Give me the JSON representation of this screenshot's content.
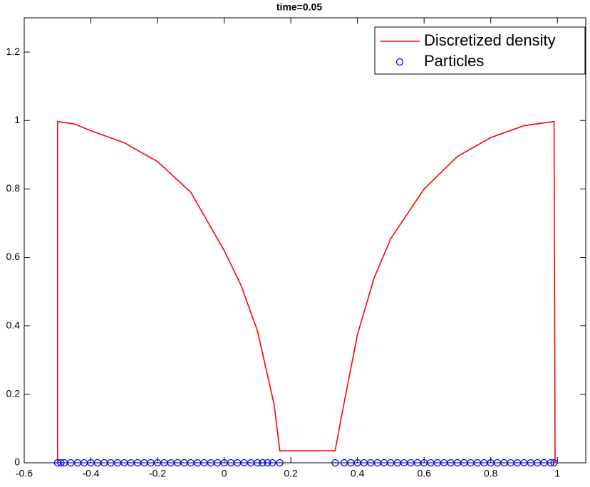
{
  "chart_data": {
    "type": "line",
    "title": "time=0.05",
    "xlim": [
      -0.6,
      1.085
    ],
    "ylim": [
      0,
      1.3
    ],
    "xticks": [
      -0.6,
      -0.4,
      -0.2,
      0,
      0.2,
      0.4,
      0.6,
      0.8,
      1
    ],
    "yticks": [
      0,
      0.2,
      0.4,
      0.6,
      0.8,
      1,
      1.2
    ],
    "legend": "upper right",
    "series": [
      {
        "name": "Discretized density",
        "color": "#ff0000",
        "x": [
          -0.5,
          -0.5,
          -0.45,
          -0.4,
          -0.3,
          -0.2,
          -0.1,
          0,
          0.05,
          0.1,
          0.15,
          0.167,
          0.333,
          0.35,
          0.4,
          0.45,
          0.5,
          0.6,
          0.7,
          0.8,
          0.9,
          0.99,
          0.993
        ],
        "values": [
          0,
          0.997,
          0.99,
          0.97,
          0.935,
          0.88,
          0.79,
          0.62,
          0.52,
          0.385,
          0.17,
          0.035,
          0.035,
          0.125,
          0.375,
          0.54,
          0.655,
          0.8,
          0.895,
          0.95,
          0.985,
          0.997,
          0
        ]
      },
      {
        "name": "Particles",
        "color": "#0000ff",
        "marker": "circle",
        "x": [
          -0.5,
          -0.49,
          -0.48,
          -0.46,
          -0.44,
          -0.42,
          -0.4,
          -0.38,
          -0.36,
          -0.34,
          -0.32,
          -0.3,
          -0.28,
          -0.26,
          -0.24,
          -0.22,
          -0.2,
          -0.18,
          -0.16,
          -0.14,
          -0.12,
          -0.1,
          -0.08,
          -0.06,
          -0.04,
          -0.02,
          0,
          0.02,
          0.04,
          0.06,
          0.08,
          0.1,
          0.115,
          0.13,
          0.145,
          0.167,
          0.333,
          0.36,
          0.38,
          0.4,
          0.42,
          0.44,
          0.46,
          0.48,
          0.5,
          0.52,
          0.54,
          0.56,
          0.58,
          0.6,
          0.62,
          0.64,
          0.66,
          0.68,
          0.7,
          0.72,
          0.74,
          0.76,
          0.78,
          0.8,
          0.82,
          0.84,
          0.86,
          0.88,
          0.9,
          0.92,
          0.94,
          0.96,
          0.98,
          0.99
        ],
        "values": [
          0,
          0,
          0,
          0,
          0,
          0,
          0,
          0,
          0,
          0,
          0,
          0,
          0,
          0,
          0,
          0,
          0,
          0,
          0,
          0,
          0,
          0,
          0,
          0,
          0,
          0,
          0,
          0,
          0,
          0,
          0,
          0,
          0,
          0,
          0,
          0,
          0,
          0,
          0,
          0,
          0,
          0,
          0,
          0,
          0,
          0,
          0,
          0,
          0,
          0,
          0,
          0,
          0,
          0,
          0,
          0,
          0,
          0,
          0,
          0,
          0,
          0,
          0,
          0,
          0,
          0,
          0,
          0,
          0,
          0
        ]
      }
    ]
  }
}
